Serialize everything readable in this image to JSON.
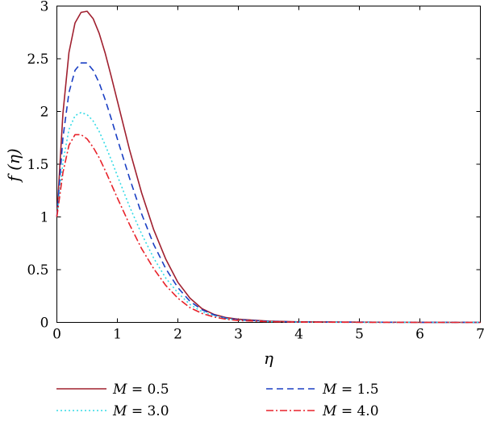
{
  "chart_data": {
    "type": "line",
    "title": "",
    "xlabel": "η",
    "ylabel": "f (η)",
    "xlim": [
      0,
      7
    ],
    "ylim": [
      0,
      3
    ],
    "xticks": [
      "0",
      "1",
      "2",
      "3",
      "4",
      "5",
      "6",
      "7"
    ],
    "yticks": [
      "0",
      "0.5",
      "1",
      "1.5",
      "2",
      "2.5",
      "3"
    ],
    "grid": false,
    "legend_position": "bottom",
    "series": [
      {
        "name": "M = 0.5",
        "legend_var": "M",
        "legend_value": "= 0.5",
        "color": "#a0202f",
        "dash": "solid",
        "peak_x": 0.5,
        "peak_y": 2.95,
        "x": [
          0,
          0.1,
          0.2,
          0.3,
          0.4,
          0.5,
          0.6,
          0.7,
          0.8,
          0.9,
          1.0,
          1.2,
          1.4,
          1.6,
          1.8,
          2.0,
          2.2,
          2.4,
          2.6,
          2.8,
          3.0,
          3.5,
          4.0,
          5.0,
          6.0,
          7.0
        ],
        "y": [
          1.0,
          1.98,
          2.56,
          2.84,
          2.94,
          2.95,
          2.88,
          2.74,
          2.55,
          2.33,
          2.1,
          1.64,
          1.23,
          0.88,
          0.6,
          0.38,
          0.23,
          0.13,
          0.075,
          0.045,
          0.03,
          0.012,
          0.005,
          0.002,
          0.001,
          0.0
        ]
      },
      {
        "name": "M = 1.5",
        "legend_var": "M",
        "legend_value": "= 1.5",
        "color": "#1a3fc4",
        "dash": "8 5",
        "peak_x": 0.48,
        "peak_y": 2.46,
        "x": [
          0,
          0.1,
          0.2,
          0.3,
          0.4,
          0.5,
          0.6,
          0.7,
          0.8,
          0.9,
          1.0,
          1.2,
          1.4,
          1.6,
          1.8,
          2.0,
          2.2,
          2.4,
          2.6,
          2.8,
          3.0,
          3.5,
          4.0,
          5.0,
          6.0,
          7.0
        ],
        "y": [
          1.0,
          1.75,
          2.18,
          2.39,
          2.46,
          2.46,
          2.39,
          2.27,
          2.11,
          1.93,
          1.74,
          1.37,
          1.03,
          0.74,
          0.51,
          0.33,
          0.2,
          0.12,
          0.07,
          0.04,
          0.025,
          0.01,
          0.004,
          0.002,
          0.001,
          0.0
        ]
      },
      {
        "name": "M = 3.0",
        "legend_var": "M",
        "legend_value": "= 3.0",
        "color": "#35dbe6",
        "dash": "2 3",
        "peak_x": 0.45,
        "peak_y": 1.99,
        "x": [
          0,
          0.1,
          0.2,
          0.3,
          0.4,
          0.5,
          0.6,
          0.7,
          0.8,
          0.9,
          1.0,
          1.2,
          1.4,
          1.6,
          1.8,
          2.0,
          2.2,
          2.4,
          2.6,
          2.8,
          3.0,
          3.5,
          4.0,
          5.0,
          6.0,
          7.0
        ],
        "y": [
          1.0,
          1.52,
          1.83,
          1.96,
          1.99,
          1.97,
          1.91,
          1.81,
          1.68,
          1.54,
          1.39,
          1.1,
          0.84,
          0.61,
          0.42,
          0.28,
          0.17,
          0.1,
          0.06,
          0.035,
          0.02,
          0.008,
          0.003,
          0.001,
          0.0,
          0.0
        ]
      },
      {
        "name": "M = 4.0",
        "legend_var": "M",
        "legend_value": "= 4.0",
        "color": "#e8222a",
        "dash": "9 3 2 3",
        "peak_x": 0.4,
        "peak_y": 1.78,
        "x": [
          0,
          0.1,
          0.2,
          0.3,
          0.4,
          0.5,
          0.6,
          0.7,
          0.8,
          0.9,
          1.0,
          1.2,
          1.4,
          1.6,
          1.8,
          2.0,
          2.2,
          2.4,
          2.6,
          2.8,
          3.0,
          3.5,
          4.0,
          5.0,
          6.0,
          7.0
        ],
        "y": [
          1.0,
          1.42,
          1.68,
          1.78,
          1.78,
          1.74,
          1.66,
          1.56,
          1.44,
          1.31,
          1.18,
          0.93,
          0.7,
          0.51,
          0.35,
          0.23,
          0.14,
          0.085,
          0.05,
          0.03,
          0.018,
          0.007,
          0.003,
          0.001,
          0.0,
          0.0
        ]
      }
    ]
  }
}
